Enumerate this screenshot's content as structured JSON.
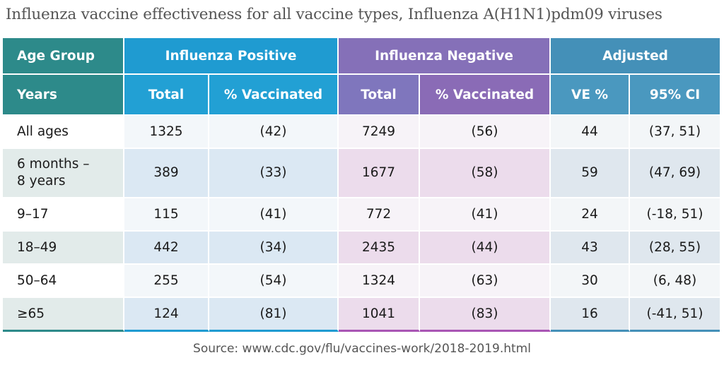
{
  "title": "Influenza vaccine effectiveness for all vaccine types, Influenza A(H1N1)pdm09 viruses",
  "header": {
    "group_row": [
      "Age Group",
      "Influenza Positive",
      "Influenza Negative",
      "Adjusted"
    ],
    "column_row": [
      "Years",
      "Total",
      "% Vaccinated",
      "Total",
      "% Vaccinated",
      "VE %",
      "95% CI"
    ]
  },
  "rows": [
    {
      "age": "All ages",
      "pos_total": "1325",
      "pos_vacc": "(42)",
      "neg_total": "7249",
      "neg_vacc": "(56)",
      "ve": "44",
      "ci": "(37, 51)"
    },
    {
      "age": "6 months –",
      "age2": "8 years",
      "pos_total": "389",
      "pos_vacc": "(33)",
      "neg_total": "1677",
      "neg_vacc": "(58)",
      "ve": "59",
      "ci": "(47, 69)"
    },
    {
      "age": "9–17",
      "pos_total": "115",
      "pos_vacc": "(41)",
      "neg_total": "772",
      "neg_vacc": "(41)",
      "ve": "24",
      "ci": "(-18, 51)"
    },
    {
      "age": "18–49",
      "pos_total": "442",
      "pos_vacc": "(34)",
      "neg_total": "2435",
      "neg_vacc": "(44)",
      "ve": "43",
      "ci": "(28, 55)"
    },
    {
      "age": "50–64",
      "pos_total": "255",
      "pos_vacc": "(54)",
      "neg_total": "1324",
      "neg_vacc": "(63)",
      "ve": "30",
      "ci": "(6, 48)"
    },
    {
      "age": "≥65",
      "pos_total": "124",
      "pos_vacc": "(81)",
      "neg_total": "1041",
      "neg_vacc": "(83)",
      "ve": "16",
      "ci": "(-41, 51)"
    }
  ],
  "source": "Source: www.cdc.gov/flu/vaccines-work/2018-2019.html",
  "colors": {
    "age_header": "#2d8a8a",
    "positive_header": "#1f9bd1",
    "negative_header": "#8570b8",
    "adjusted_header": "#4490b8"
  },
  "chart_data": {
    "type": "table",
    "title": "Influenza vaccine effectiveness for all vaccine types, Influenza A(H1N1)pdm09 viruses",
    "columns": [
      "Years",
      "Influenza Positive Total",
      "Influenza Positive % Vaccinated",
      "Influenza Negative Total",
      "Influenza Negative % Vaccinated",
      "Adjusted VE %",
      "Adjusted 95% CI"
    ],
    "values": [
      [
        "All ages",
        1325,
        42,
        7249,
        56,
        44,
        "37, 51"
      ],
      [
        "6 months – 8 years",
        389,
        33,
        1677,
        58,
        59,
        "47, 69"
      ],
      [
        "9–17",
        115,
        41,
        772,
        41,
        24,
        "-18, 51"
      ],
      [
        "18–49",
        442,
        34,
        2435,
        44,
        43,
        "28, 55"
      ],
      [
        "50–64",
        255,
        54,
        1324,
        63,
        30,
        "6, 48"
      ],
      [
        "≥65",
        124,
        81,
        1041,
        83,
        16,
        "-41, 51"
      ]
    ]
  }
}
